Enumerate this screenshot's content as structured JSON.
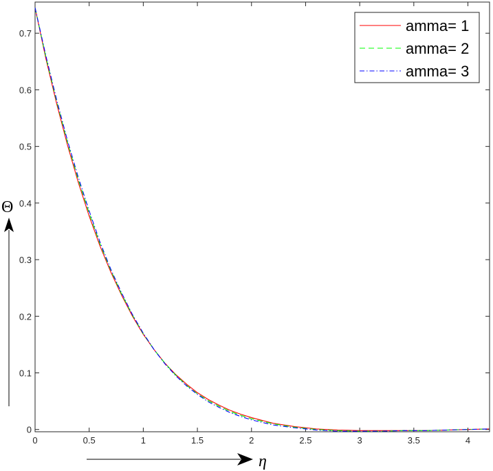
{
  "chart_data": {
    "type": "line",
    "title": "",
    "xlabel": "η",
    "ylabel": "Θ",
    "xlim": [
      0,
      4.2
    ],
    "ylim": [
      -0.004,
      0.755
    ],
    "x_ticks": [
      0,
      0.5,
      1,
      1.5,
      2,
      2.5,
      3,
      3.5,
      4
    ],
    "x_tick_labels": [
      "0",
      "0.5",
      "1",
      "1.5",
      "2",
      "2.5",
      "3",
      "3.5",
      "4"
    ],
    "y_ticks": [
      0,
      0.1,
      0.2,
      0.3,
      0.4,
      0.5,
      0.6,
      0.7
    ],
    "y_tick_labels": [
      "0",
      "0.1",
      "0.2",
      "0.3",
      "0.4",
      "0.5",
      "0.6",
      "0.7"
    ],
    "grid": false,
    "legend_position": "top-right",
    "x": [
      0,
      0.1,
      0.2,
      0.3,
      0.4,
      0.5,
      0.6,
      0.7,
      0.8,
      0.9,
      1.0,
      1.1,
      1.2,
      1.3,
      1.4,
      1.5,
      1.6,
      1.7,
      1.8,
      1.9,
      2.0,
      2.2,
      2.4,
      2.6,
      2.8,
      3.0,
      3.2,
      3.4,
      3.6,
      3.8,
      4.0,
      4.2
    ],
    "series": [
      {
        "name": "amma= 1",
        "color": "#ff0000",
        "dash": "solid",
        "values": [
          0.745,
          0.655,
          0.575,
          0.502,
          0.436,
          0.377,
          0.324,
          0.278,
          0.237,
          0.2,
          0.168,
          0.141,
          0.117,
          0.097,
          0.08,
          0.065,
          0.053,
          0.043,
          0.034,
          0.027,
          0.021,
          0.011,
          0.005,
          0.001,
          -0.001,
          -0.002,
          -0.002,
          -0.002,
          -0.002,
          -0.001,
          0.0,
          0.001
        ]
      },
      {
        "name": "amma= 2",
        "color": "#00ff00",
        "dash": "dashed",
        "values": [
          0.745,
          0.658,
          0.579,
          0.507,
          0.441,
          0.382,
          0.328,
          0.281,
          0.239,
          0.202,
          0.169,
          0.141,
          0.117,
          0.096,
          0.078,
          0.063,
          0.051,
          0.041,
          0.032,
          0.025,
          0.019,
          0.01,
          0.004,
          0.0,
          -0.002,
          -0.003,
          -0.003,
          -0.002,
          -0.002,
          -0.001,
          0.0,
          0.001
        ]
      },
      {
        "name": "amma= 3",
        "color": "#0000ff",
        "dash": "dashdot",
        "values": [
          0.745,
          0.66,
          0.582,
          0.51,
          0.445,
          0.386,
          0.331,
          0.283,
          0.241,
          0.203,
          0.17,
          0.141,
          0.116,
          0.095,
          0.077,
          0.062,
          0.049,
          0.039,
          0.03,
          0.023,
          0.017,
          0.008,
          0.003,
          -0.001,
          -0.003,
          -0.003,
          -0.003,
          -0.002,
          -0.002,
          -0.001,
          0.0,
          0.001
        ]
      }
    ]
  }
}
